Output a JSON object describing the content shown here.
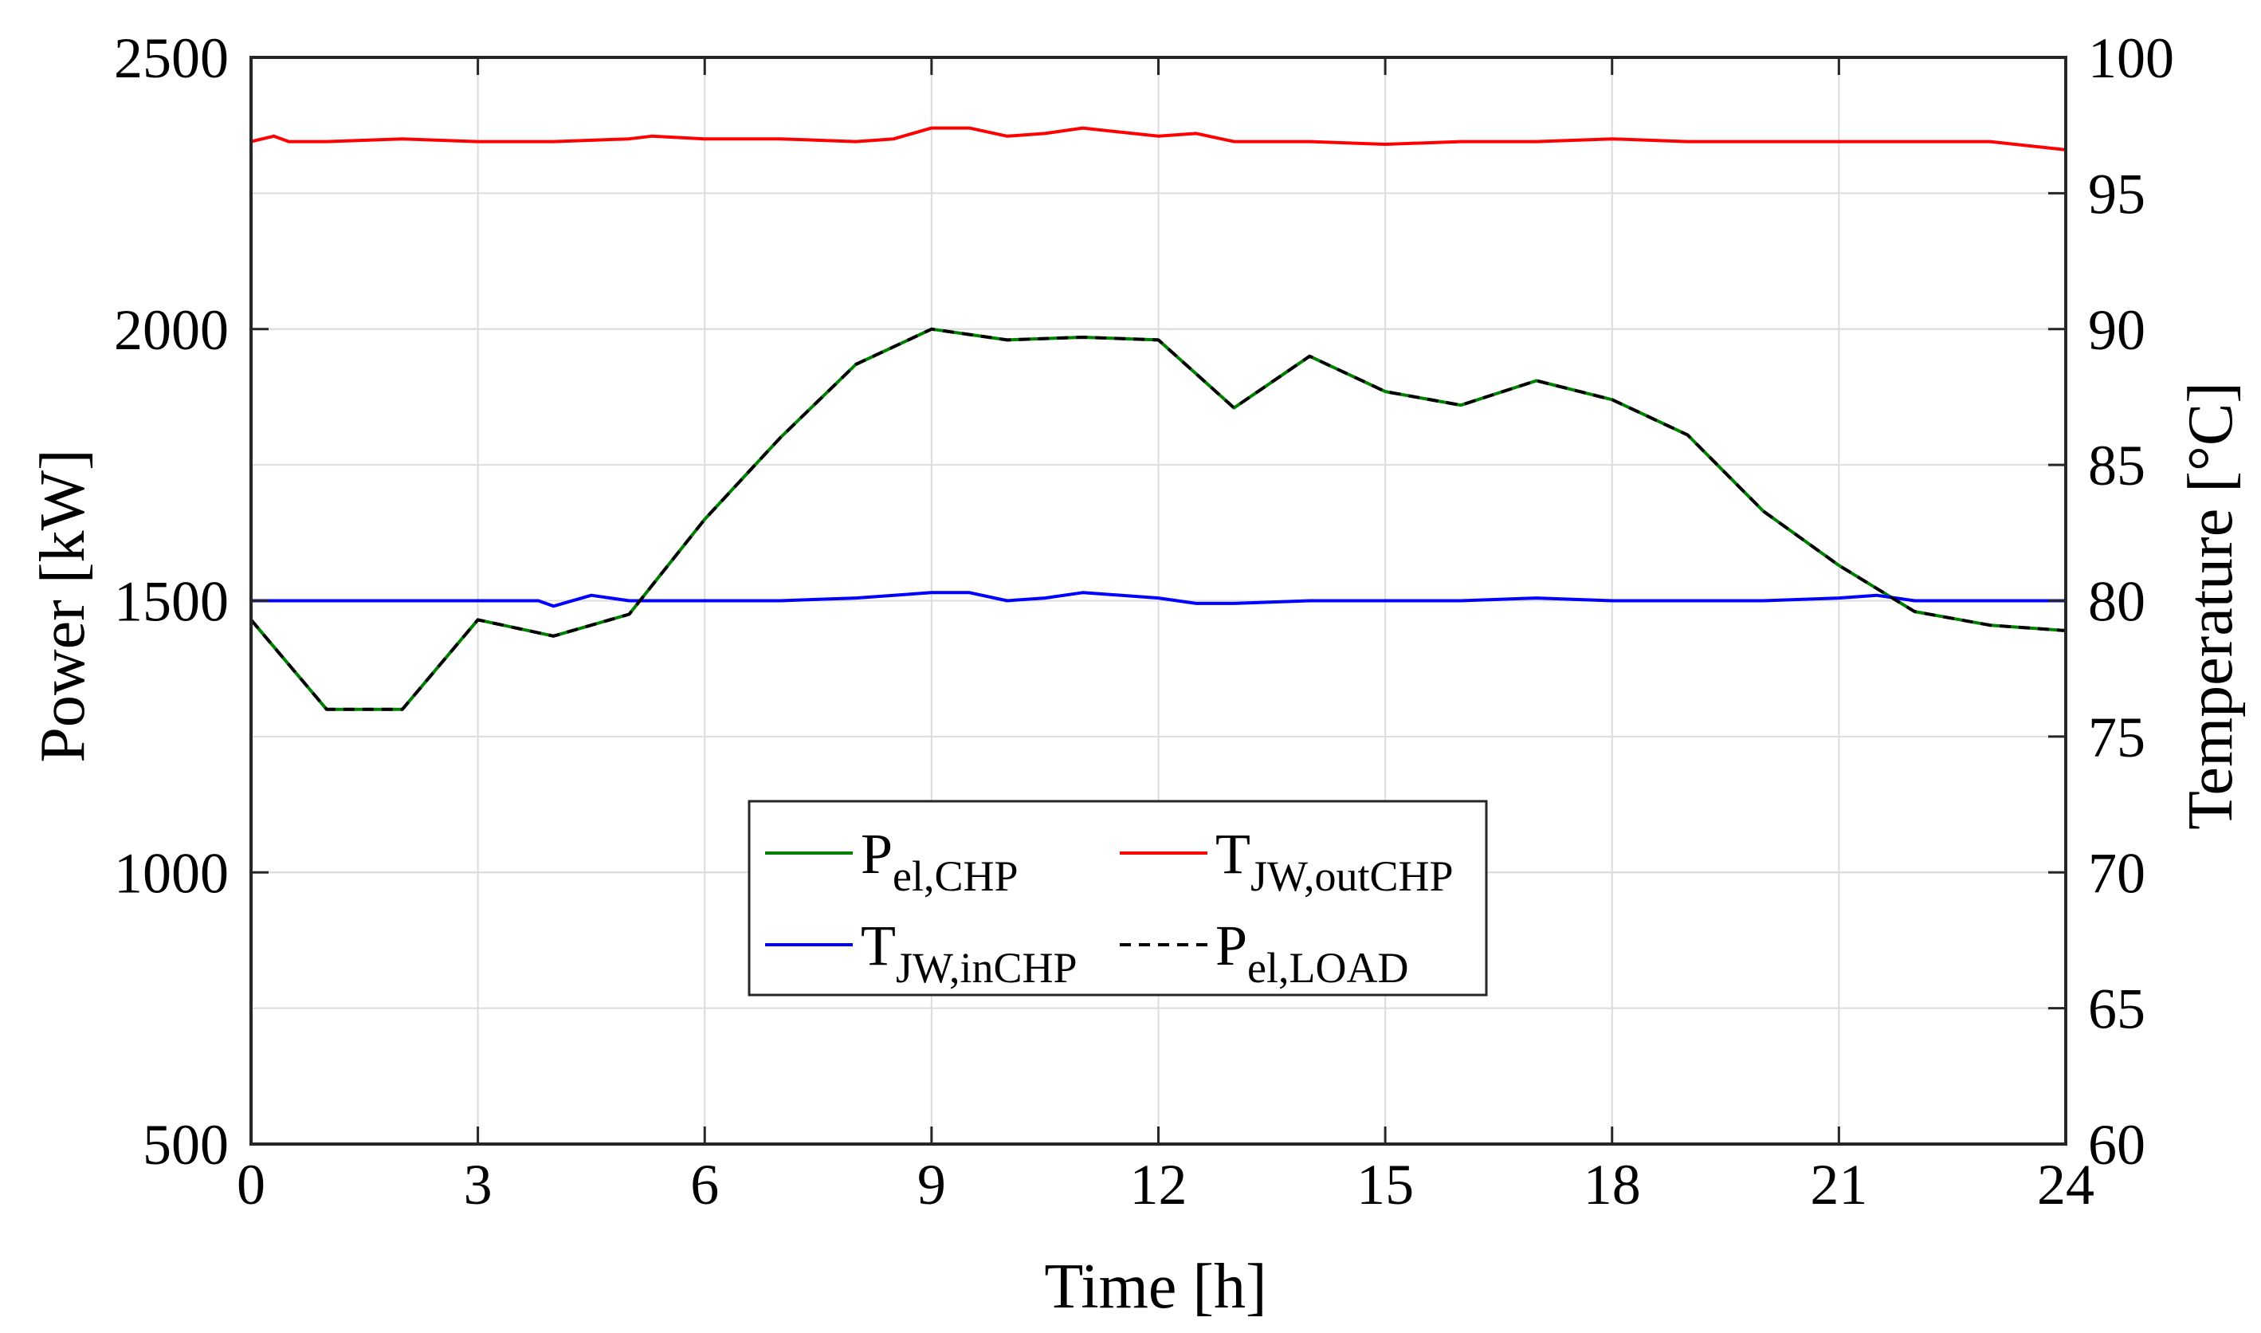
{
  "chart_data": {
    "type": "line",
    "title": "",
    "xlabel": "Time [h]",
    "ylabel_left": "Power [kW]",
    "ylabel_right": "Temperature [°C]",
    "xlim": [
      0,
      24
    ],
    "ylim_left": [
      500,
      2500
    ],
    "ylim_right": [
      60,
      100
    ],
    "xticks": [
      0,
      3,
      6,
      9,
      12,
      15,
      18,
      21,
      24
    ],
    "yticks_left": [
      500,
      1000,
      1500,
      2000,
      2500
    ],
    "yticks_right": [
      60,
      65,
      70,
      75,
      80,
      85,
      90,
      95,
      100
    ],
    "grid": true,
    "legend_position": "lower-center",
    "series": [
      {
        "name": "P_el,CHP",
        "label_main": "P",
        "label_sub": "el,CHP",
        "axis": "left",
        "color": "#008000",
        "style": "solid",
        "x": [
          0,
          1,
          2,
          3,
          4,
          5,
          6,
          7,
          8,
          9,
          10,
          11,
          12,
          13,
          14,
          15,
          16,
          17,
          18,
          19,
          20,
          21,
          22,
          23,
          24
        ],
        "y": [
          1465,
          1300,
          1300,
          1465,
          1435,
          1475,
          1650,
          1800,
          1935,
          2000,
          1980,
          1985,
          1980,
          1855,
          1950,
          1885,
          1860,
          1905,
          1870,
          1805,
          1665,
          1565,
          1480,
          1455,
          1445
        ]
      },
      {
        "name": "T_JW,outCHP",
        "label_main": "T",
        "label_sub": "JW,outCHP",
        "axis": "right",
        "color": "#ff0000",
        "style": "solid",
        "x": [
          0,
          0.3,
          0.5,
          1,
          2,
          3,
          4,
          5,
          5.3,
          6,
          7,
          8,
          8.5,
          9,
          9.5,
          10,
          10.5,
          11,
          12,
          12.5,
          13,
          14,
          15,
          16,
          17,
          18,
          19,
          20,
          21,
          22,
          23,
          24
        ],
        "y": [
          96.9,
          97.1,
          96.9,
          96.9,
          97.0,
          96.9,
          96.9,
          97.0,
          97.1,
          97.0,
          97.0,
          96.9,
          97.0,
          97.4,
          97.4,
          97.1,
          97.2,
          97.4,
          97.1,
          97.2,
          96.9,
          96.9,
          96.8,
          96.9,
          96.9,
          97.0,
          96.9,
          96.9,
          96.9,
          96.9,
          96.9,
          96.6
        ]
      },
      {
        "name": "T_JW,inCHP",
        "label_main": "T",
        "label_sub": "JW,inCHP",
        "axis": "right",
        "color": "#0000ff",
        "style": "solid",
        "x": [
          0,
          1,
          2,
          3,
          3.8,
          4,
          4.5,
          5,
          6,
          7,
          8,
          9,
          9.5,
          10,
          10.5,
          11,
          12,
          12.5,
          13,
          14,
          15,
          16,
          17,
          18,
          19,
          20,
          21,
          21.5,
          22,
          23,
          24
        ],
        "y": [
          80.0,
          80.0,
          80.0,
          80.0,
          80.0,
          79.8,
          80.2,
          80.0,
          80.0,
          80.0,
          80.1,
          80.3,
          80.3,
          80.0,
          80.1,
          80.3,
          80.1,
          79.9,
          79.9,
          80.0,
          80.0,
          80.0,
          80.1,
          80.0,
          80.0,
          80.0,
          80.1,
          80.2,
          80.0,
          80.0,
          80.0
        ]
      },
      {
        "name": "P_el,LOAD",
        "label_main": "P",
        "label_sub": "el,LOAD",
        "axis": "left",
        "color": "#000000",
        "style": "dashed",
        "x": [
          0,
          1,
          2,
          3,
          4,
          5,
          6,
          7,
          8,
          9,
          10,
          11,
          12,
          13,
          14,
          15,
          16,
          17,
          18,
          19,
          20,
          21,
          22,
          23,
          24
        ],
        "y": [
          1465,
          1300,
          1300,
          1465,
          1435,
          1475,
          1650,
          1800,
          1935,
          2000,
          1980,
          1985,
          1980,
          1855,
          1950,
          1885,
          1860,
          1905,
          1870,
          1805,
          1665,
          1565,
          1480,
          1455,
          1445
        ]
      }
    ]
  }
}
